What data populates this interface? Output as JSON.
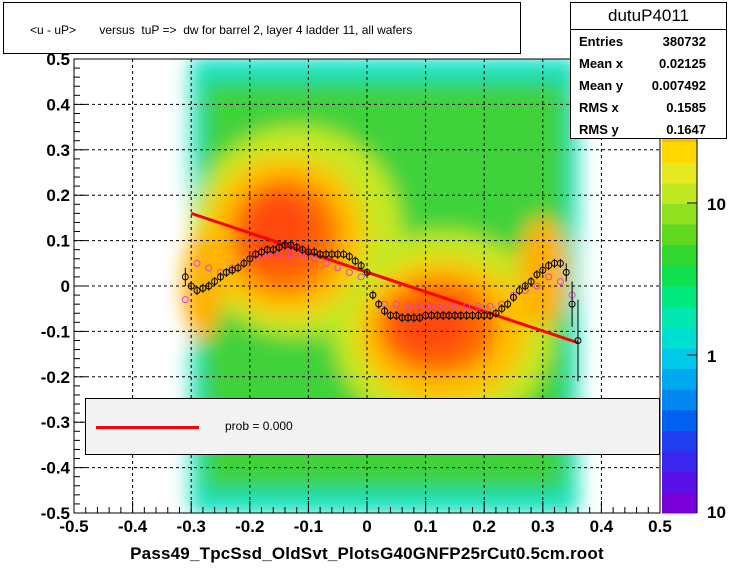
{
  "title": "<u - uP>       versus  tuP =>  dw for barrel 2, layer 4 ladder 11, all wafers",
  "stats": {
    "name": "dutuP4011",
    "rows": [
      {
        "key": "Entries",
        "value": "380732"
      },
      {
        "key": "Mean x",
        "value": "0.02125"
      },
      {
        "key": "Mean y",
        "value": "0.007492"
      },
      {
        "key": "RMS x",
        "value": "0.1585"
      },
      {
        "key": "RMS y",
        "value": "0.1647"
      }
    ]
  },
  "legend": {
    "label": "prob = 0.000",
    "color": "#ff0000"
  },
  "chart_data": {
    "type": "heatmap",
    "title": "<u - uP>       versus  tuP =>  dw for barrel 2, layer 4 ladder 11, all wafers",
    "xlabel": "Pass49_TpcSsd_OldSvt_PlotsG40GNFP25rCut0.5cm.root",
    "ylabel": "",
    "xlim": [
      -0.5,
      0.5
    ],
    "ylim": [
      -0.5,
      0.5
    ],
    "x_ticks": [
      "-0.5",
      "-0.4",
      "-0.3",
      "-0.2",
      "-0.1",
      "0",
      "0.1",
      "0.2",
      "0.3",
      "0.4",
      "0.5"
    ],
    "y_ticks": [
      "-0.5",
      "-0.4",
      "-0.3",
      "-0.2",
      "-0.1",
      "0",
      "0.1",
      "0.2",
      "0.3",
      "0.4",
      "0.5"
    ],
    "z_scale": "log",
    "z_ticks": [
      "1",
      "10"
    ],
    "z_tick_bottom": "10",
    "grid": true,
    "profile_black": {
      "x": [
        -0.31,
        -0.3,
        -0.29,
        -0.28,
        -0.27,
        -0.26,
        -0.25,
        -0.24,
        -0.23,
        -0.22,
        -0.21,
        -0.2,
        -0.19,
        -0.18,
        -0.17,
        -0.16,
        -0.15,
        -0.14,
        -0.13,
        -0.12,
        -0.11,
        -0.1,
        -0.09,
        -0.08,
        -0.07,
        -0.06,
        -0.05,
        -0.04,
        -0.03,
        -0.02,
        -0.01,
        0.0,
        0.01,
        0.02,
        0.03,
        0.04,
        0.05,
        0.06,
        0.07,
        0.08,
        0.09,
        0.1,
        0.11,
        0.12,
        0.13,
        0.14,
        0.15,
        0.16,
        0.17,
        0.18,
        0.19,
        0.2,
        0.21,
        0.22,
        0.23,
        0.24,
        0.25,
        0.26,
        0.27,
        0.28,
        0.29,
        0.3,
        0.31,
        0.32,
        0.33,
        0.34,
        0.35,
        0.36
      ],
      "y": [
        0.02,
        0.0,
        -0.01,
        -0.005,
        0.0,
        0.01,
        0.02,
        0.03,
        0.035,
        0.04,
        0.05,
        0.06,
        0.07,
        0.075,
        0.08,
        0.08,
        0.085,
        0.09,
        0.09,
        0.085,
        0.08,
        0.075,
        0.075,
        0.07,
        0.07,
        0.07,
        0.07,
        0.07,
        0.065,
        0.055,
        0.045,
        0.03,
        -0.02,
        -0.04,
        -0.055,
        -0.065,
        -0.065,
        -0.07,
        -0.07,
        -0.07,
        -0.07,
        -0.065,
        -0.065,
        -0.065,
        -0.065,
        -0.065,
        -0.065,
        -0.065,
        -0.065,
        -0.065,
        -0.065,
        -0.065,
        -0.065,
        -0.06,
        -0.05,
        -0.04,
        -0.025,
        -0.01,
        0.0,
        0.01,
        0.025,
        0.035,
        0.045,
        0.05,
        0.05,
        0.03,
        -0.04,
        -0.12
      ],
      "err": [
        0.02,
        0.01,
        0.01,
        0.01,
        0.01,
        0.01,
        0.01,
        0.01,
        0.01,
        0.01,
        0.01,
        0.01,
        0.01,
        0.01,
        0.01,
        0.01,
        0.01,
        0.01,
        0.01,
        0.01,
        0.01,
        0.01,
        0.01,
        0.01,
        0.01,
        0.01,
        0.01,
        0.01,
        0.01,
        0.01,
        0.01,
        0.01,
        0.01,
        0.01,
        0.01,
        0.01,
        0.01,
        0.01,
        0.01,
        0.01,
        0.01,
        0.01,
        0.01,
        0.01,
        0.01,
        0.01,
        0.01,
        0.01,
        0.01,
        0.01,
        0.01,
        0.01,
        0.01,
        0.01,
        0.01,
        0.01,
        0.01,
        0.01,
        0.01,
        0.01,
        0.01,
        0.01,
        0.01,
        0.01,
        0.01,
        0.02,
        0.05,
        0.09
      ]
    },
    "profile_magenta": {
      "x": [
        -0.31,
        -0.29,
        -0.27,
        -0.25,
        -0.23,
        -0.21,
        -0.19,
        -0.17,
        -0.15,
        -0.13,
        -0.11,
        -0.09,
        -0.07,
        -0.05,
        -0.03,
        -0.01,
        0.01,
        0.03,
        0.05,
        0.07,
        0.09,
        0.11,
        0.13,
        0.15,
        0.17,
        0.19,
        0.21,
        0.23,
        0.25,
        0.27,
        0.29,
        0.31,
        0.33,
        0.35
      ],
      "y": [
        -0.03,
        0.05,
        0.04,
        0.03,
        0.04,
        0.05,
        0.06,
        0.07,
        0.07,
        0.07,
        0.07,
        0.06,
        0.05,
        0.04,
        0.03,
        0.02,
        -0.02,
        -0.04,
        -0.04,
        -0.045,
        -0.045,
        -0.045,
        -0.045,
        -0.045,
        -0.045,
        -0.045,
        -0.045,
        -0.04,
        -0.02,
        -0.01,
        0.0,
        0.02,
        0.01,
        -0.02
      ]
    },
    "fit_line": {
      "x": [
        -0.3,
        0.36
      ],
      "y": [
        0.16,
        -0.125
      ]
    }
  }
}
